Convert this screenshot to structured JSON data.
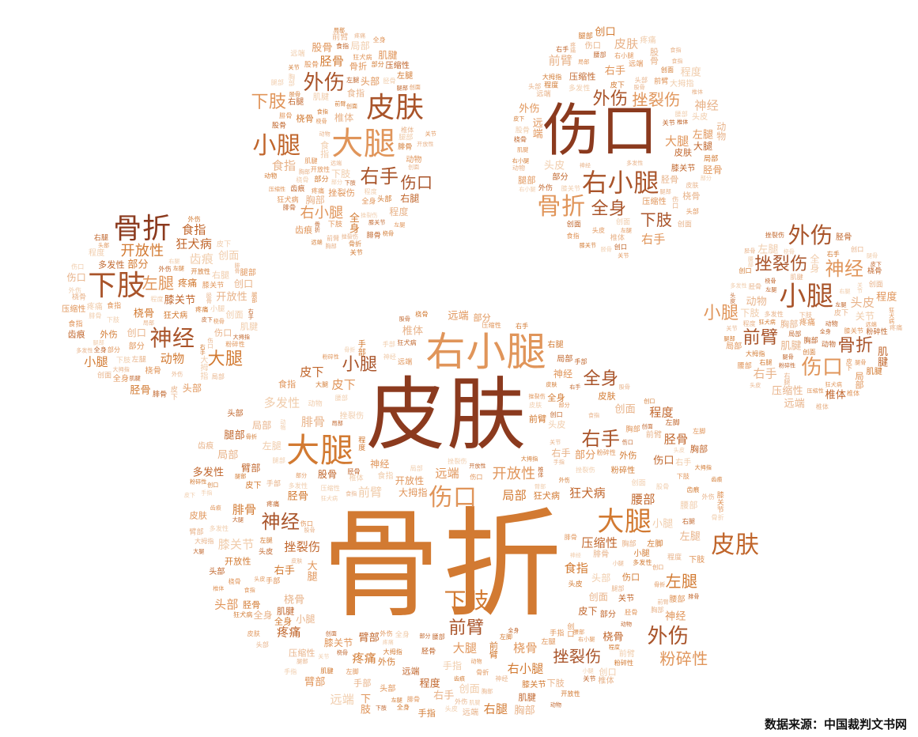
{
  "source_note": "数据来源：中国裁判文书网",
  "palette": [
    "#8b3a1e",
    "#a9542a",
    "#c0652b",
    "#d27a32",
    "#e0955a",
    "#e8b38a",
    "#f0ccab"
  ],
  "clusters": [
    {
      "id": "big-pad",
      "big": [
        {
          "t": "骨折",
          "w": 10,
          "c": 3
        },
        {
          "t": "皮肤",
          "w": 9,
          "c": 0
        },
        {
          "t": "右小腿",
          "w": 6,
          "c": 4
        },
        {
          "t": "大腿",
          "w": 5,
          "c": 3
        },
        {
          "t": "伤口",
          "w": 4,
          "c": 4
        },
        {
          "t": "大腿",
          "w": 4,
          "c": 3
        },
        {
          "t": "皮肤",
          "w": 4,
          "c": 2
        },
        {
          "t": "下肢",
          "w": 4,
          "c": 3
        },
        {
          "t": "外伤",
          "w": 4,
          "c": 1
        },
        {
          "t": "右手",
          "w": 3,
          "c": 1
        },
        {
          "t": "前臂",
          "w": 3,
          "c": 1
        },
        {
          "t": "神经",
          "w": 3,
          "c": 1
        },
        {
          "t": "小腿",
          "w": 3,
          "c": 1
        },
        {
          "t": "全身",
          "w": 3,
          "c": 1
        },
        {
          "t": "左腿",
          "w": 3,
          "c": 3
        },
        {
          "t": "挫裂伤",
          "w": 3,
          "c": 1
        },
        {
          "t": "粉碎性",
          "w": 3,
          "c": 4
        },
        {
          "t": "开放性",
          "w": 3,
          "c": 4
        }
      ],
      "small": [
        "骨折",
        "皮肤",
        "外伤",
        "肌腱",
        "头皮",
        "椎体",
        "局部",
        "部分",
        "创口",
        "食指",
        "程度",
        "动物",
        "压缩性",
        "桡骨",
        "狂犬病",
        "疼痛",
        "多发性",
        "腰部",
        "胸部",
        "腿部",
        "创面",
        "右腿",
        "股骨",
        "头部",
        "膝关节",
        "大拇指",
        "远端",
        "胫骨",
        "左脚",
        "臂部",
        "腓骨",
        "皮下",
        "伤口",
        "小腿",
        "全身",
        "前臂",
        "右手",
        "左腿",
        "开放性",
        "粉碎性",
        "挫裂伤",
        "神经",
        "大腿",
        "下肢",
        "右小腿",
        "关节",
        "齿痕",
        "手指",
        "手部"
      ]
    },
    {
      "id": "left-toe",
      "big": [
        {
          "t": "骨折",
          "w": 4,
          "c": 0
        },
        {
          "t": "下肢",
          "w": 4,
          "c": 1
        },
        {
          "t": "神经",
          "w": 3,
          "c": 1
        },
        {
          "t": "大腿",
          "w": 2,
          "c": 3
        },
        {
          "t": "左腿",
          "w": 2,
          "c": 4
        },
        {
          "t": "开放性",
          "w": 2,
          "c": 3
        }
      ],
      "small": [
        "部分",
        "桡骨",
        "疼痛",
        "创面",
        "外伤",
        "腿部",
        "动物",
        "开放性",
        "伤口",
        "皮下",
        "左腿",
        "多发性",
        "右手",
        "右腿",
        "狂犬病",
        "大拇指",
        "食指",
        "肌腱",
        "压缩性",
        "创口",
        "胫骨",
        "膝关节",
        "全身",
        "头部",
        "小腿",
        "齿痕",
        "粉碎性",
        "程度",
        "局部",
        "腓骨",
        "下肢",
        "外伤"
      ]
    },
    {
      "id": "inner-left-toe",
      "big": [
        {
          "t": "皮肤",
          "w": 4,
          "c": 1
        },
        {
          "t": "大腿",
          "w": 4,
          "c": 4
        },
        {
          "t": "小腿",
          "w": 3,
          "c": 2
        },
        {
          "t": "外伤",
          "w": 3,
          "c": 1
        },
        {
          "t": "右手",
          "w": 3,
          "c": 1
        },
        {
          "t": "下肢",
          "w": 3,
          "c": 4
        },
        {
          "t": "右小腿",
          "w": 2,
          "c": 4
        },
        {
          "t": "伤口",
          "w": 2,
          "c": 1
        }
      ],
      "small": [
        "骨折",
        "全身",
        "挫裂伤",
        "动物",
        "食指",
        "前臂",
        "程度",
        "局部",
        "桡骨",
        "右腿",
        "开放性",
        "食指",
        "肌腱",
        "部分",
        "腓骨",
        "压缩性",
        "疼痛",
        "腿部",
        "下肢",
        "头部",
        "胸部",
        "股骨",
        "齿痕",
        "椎体",
        "关节",
        "创面",
        "左腿",
        "多发性",
        "胫骨",
        "远端",
        "膝关节",
        "狂犬病"
      ]
    },
    {
      "id": "inner-right-toe",
      "big": [
        {
          "t": "伤口",
          "w": 7,
          "c": 0
        },
        {
          "t": "右小腿",
          "w": 4,
          "c": 1
        },
        {
          "t": "骨折",
          "w": 3,
          "c": 4
        },
        {
          "t": "外伤",
          "w": 2,
          "c": 1
        },
        {
          "t": "挫裂伤",
          "w": 2,
          "c": 4
        },
        {
          "t": "全身",
          "w": 2,
          "c": 1
        },
        {
          "t": "下肢",
          "w": 2,
          "c": 1
        }
      ],
      "small": [
        "右小腿",
        "皮肤",
        "大腿",
        "伤口",
        "外伤",
        "头皮",
        "局部",
        "部分",
        "创口",
        "创面",
        "多发性",
        "程度",
        "动物",
        "前臂",
        "右手",
        "腿部",
        "神经",
        "头部",
        "皮下",
        "胫骨",
        "食指",
        "椎体",
        "桡骨",
        "左腿",
        "膝关节",
        "腰部",
        "压缩性",
        "股骨",
        "大拇指",
        "疼痛",
        "关节",
        "远端",
        "肌腱"
      ]
    },
    {
      "id": "right-toe",
      "big": [
        {
          "t": "小腿",
          "w": 3,
          "c": 1
        },
        {
          "t": "外伤",
          "w": 3,
          "c": 1
        },
        {
          "t": "神经",
          "w": 2,
          "c": 4
        },
        {
          "t": "挫裂伤",
          "w": 2,
          "c": 1
        },
        {
          "t": "前臂",
          "w": 2,
          "c": 1
        },
        {
          "t": "伤口",
          "w": 2,
          "c": 4
        },
        {
          "t": "骨折",
          "w": 2,
          "c": 1
        },
        {
          "t": "小腿",
          "w": 2,
          "c": 4
        }
      ],
      "small": [
        "多发性",
        "腿骨",
        "疼痛",
        "动物",
        "粉碎性",
        "全身",
        "头皮",
        "桡骨",
        "左腿",
        "局部",
        "创口",
        "肌腱",
        "压缩性",
        "右手",
        "大拇指",
        "腰部",
        "腿部",
        "下肢",
        "创面",
        "胫骨",
        "狂犬病",
        "膝关节",
        "挫裂伤",
        "程度",
        "皮下",
        "关节",
        "远端",
        "椎体",
        "右腿",
        "胸部",
        "肌腱"
      ]
    }
  ]
}
